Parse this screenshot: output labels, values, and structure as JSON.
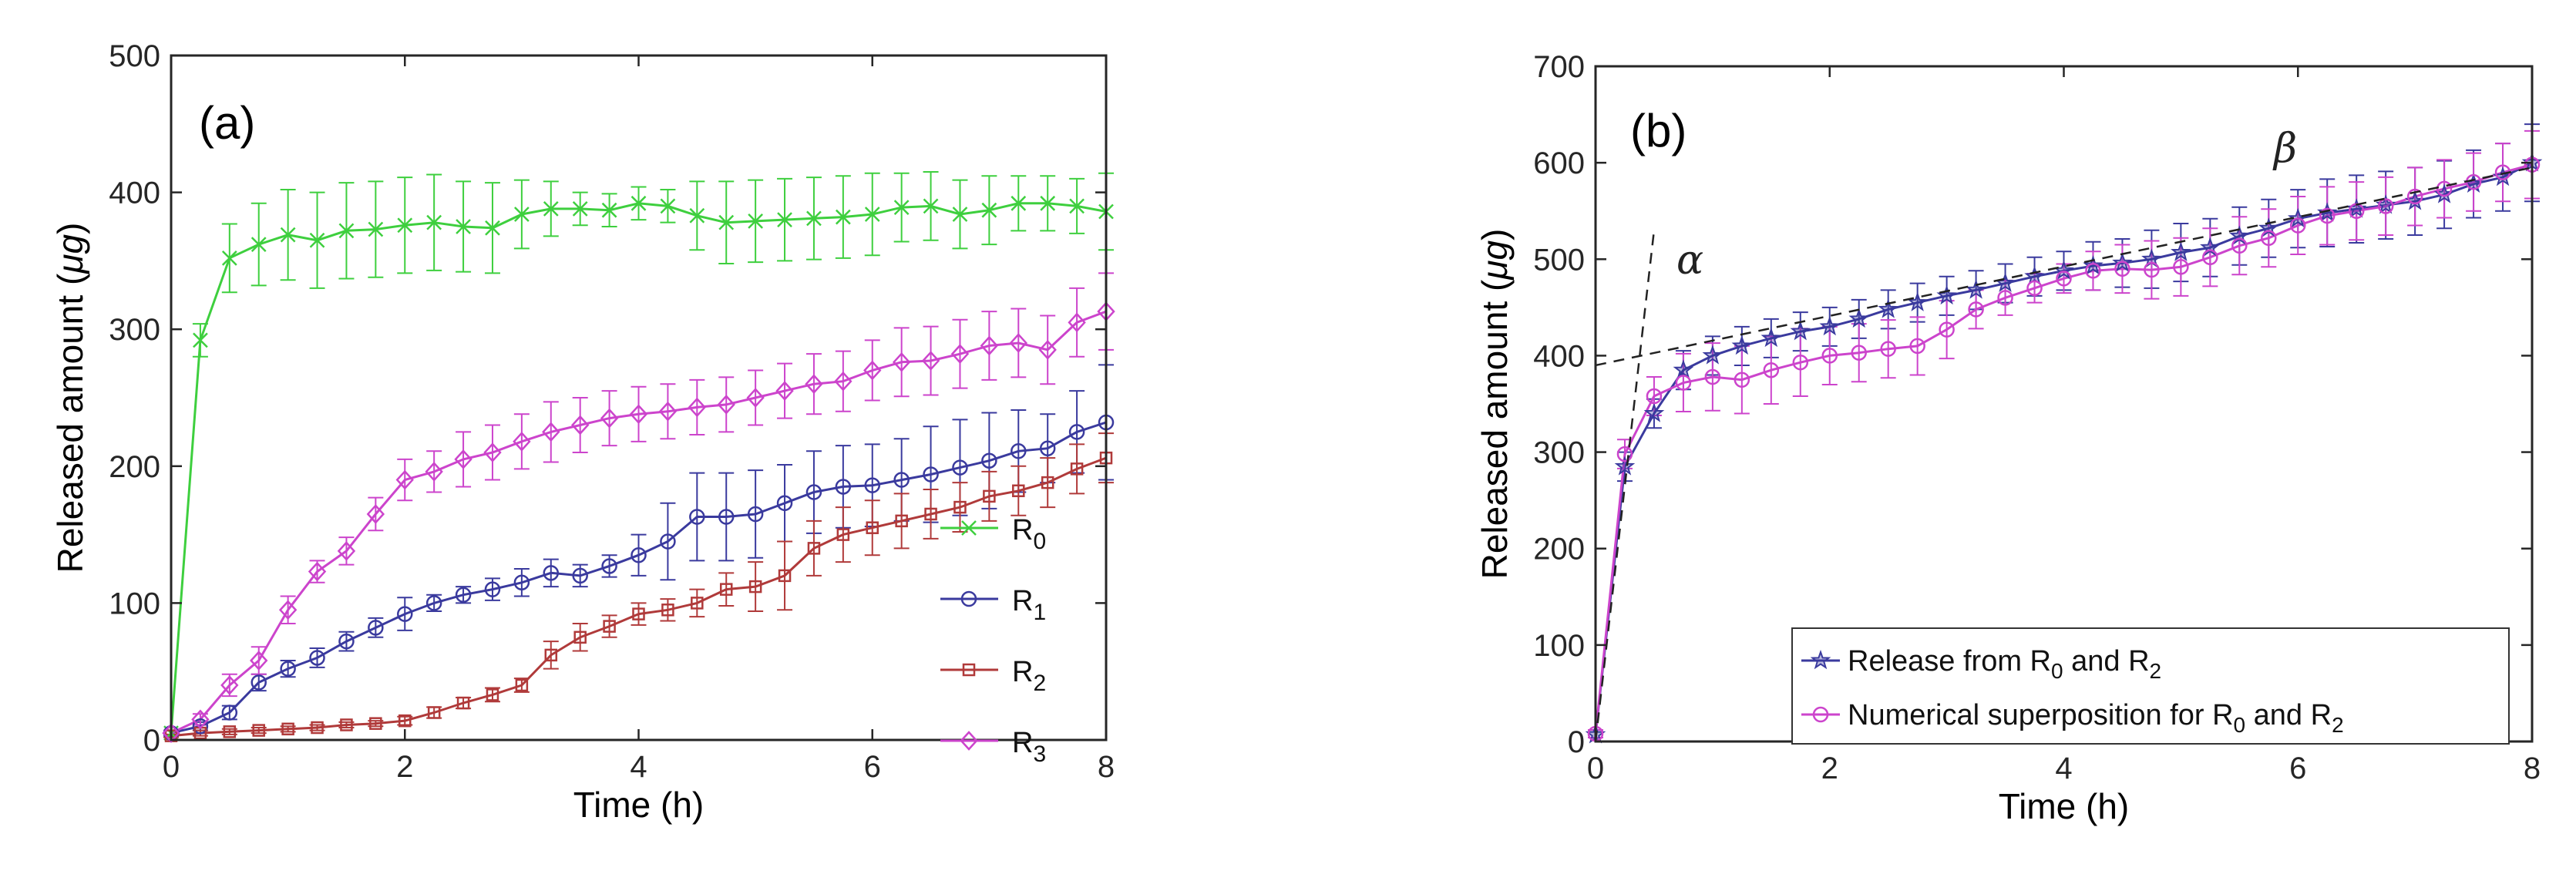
{
  "chart_data": [
    {
      "type": "line",
      "panel_label": "(a)",
      "xlabel": "Time (h)",
      "ylabel_prefix": "Released amount (",
      "ylabel_unit": "μg",
      "ylabel_suffix": ")",
      "xlim": [
        0,
        8
      ],
      "ylim": [
        0,
        500
      ],
      "xticks": [
        0,
        2,
        4,
        6,
        8
      ],
      "yticks": [
        0,
        100,
        200,
        300,
        400,
        500
      ],
      "x": [
        0,
        0.25,
        0.5,
        0.75,
        1,
        1.25,
        1.5,
        1.75,
        2,
        2.25,
        2.5,
        2.75,
        3,
        3.25,
        3.5,
        3.75,
        4,
        4.25,
        4.5,
        4.75,
        5,
        5.25,
        5.5,
        5.75,
        6,
        6.25,
        6.5,
        6.75,
        7,
        7.25,
        7.5,
        7.75,
        8
      ],
      "legend_position": "right",
      "series": [
        {
          "name": "R",
          "subscript": "0",
          "color": "#3ecf3e",
          "marker": "x",
          "values": [
            5,
            292,
            352,
            362,
            369,
            365,
            372,
            373,
            376,
            378,
            375,
            374,
            384,
            388,
            388,
            387,
            392,
            390,
            383,
            378,
            379,
            380,
            381,
            382,
            384,
            389,
            390,
            384,
            387,
            392,
            392,
            390,
            386
          ],
          "errors": [
            2,
            12,
            25,
            30,
            33,
            35,
            35,
            35,
            35,
            35,
            33,
            33,
            25,
            20,
            12,
            12,
            12,
            12,
            25,
            30,
            30,
            30,
            30,
            30,
            30,
            25,
            25,
            25,
            25,
            20,
            20,
            20,
            28
          ]
        },
        {
          "name": "R",
          "subscript": "1",
          "color": "#3a3a9e",
          "marker": "o",
          "values": [
            5,
            10,
            20,
            42,
            52,
            60,
            72,
            82,
            92,
            100,
            106,
            110,
            115,
            122,
            120,
            127,
            135,
            145,
            163,
            163,
            165,
            173,
            181,
            185,
            186,
            190,
            194,
            199,
            204,
            211,
            213,
            225,
            232
          ],
          "errors": [
            2,
            3,
            5,
            6,
            6,
            7,
            7,
            7,
            12,
            6,
            6,
            8,
            10,
            10,
            8,
            8,
            15,
            28,
            32,
            32,
            32,
            28,
            30,
            30,
            30,
            30,
            35,
            35,
            35,
            30,
            25,
            30,
            42
          ]
        },
        {
          "name": "R",
          "subscript": "2",
          "color": "#b03a3a",
          "marker": "s",
          "values": [
            3,
            5,
            6,
            7,
            8,
            9,
            11,
            12,
            14,
            20,
            27,
            33,
            40,
            62,
            75,
            83,
            92,
            95,
            100,
            110,
            112,
            120,
            140,
            150,
            155,
            160,
            165,
            170,
            178,
            182,
            188,
            198,
            206
          ],
          "errors": [
            1,
            2,
            2,
            2,
            2,
            2,
            2,
            2,
            3,
            4,
            4,
            5,
            5,
            10,
            10,
            8,
            8,
            8,
            10,
            12,
            18,
            25,
            20,
            20,
            20,
            20,
            18,
            18,
            18,
            18,
            18,
            18,
            18
          ]
        },
        {
          "name": "R",
          "subscript": "3",
          "color": "#cc44cc",
          "marker": "d",
          "values": [
            5,
            15,
            40,
            58,
            95,
            123,
            138,
            165,
            190,
            196,
            205,
            210,
            218,
            225,
            230,
            235,
            238,
            240,
            243,
            245,
            250,
            255,
            260,
            262,
            270,
            276,
            277,
            282,
            288,
            290,
            285,
            305,
            313
          ],
          "errors": [
            2,
            4,
            8,
            10,
            10,
            8,
            10,
            12,
            15,
            15,
            20,
            20,
            20,
            22,
            20,
            20,
            20,
            20,
            20,
            20,
            20,
            20,
            22,
            22,
            22,
            25,
            25,
            25,
            25,
            25,
            25,
            25,
            28
          ]
        }
      ]
    },
    {
      "type": "line",
      "panel_label": "(b)",
      "xlabel": "Time (h)",
      "ylabel_prefix": "Released amount (",
      "ylabel_unit": "μg",
      "ylabel_suffix": ")",
      "xlim": [
        0,
        8
      ],
      "ylim": [
        0,
        700
      ],
      "xticks": [
        0,
        2,
        4,
        6,
        8
      ],
      "yticks": [
        0,
        100,
        200,
        300,
        400,
        500,
        600,
        700
      ],
      "x": [
        0,
        0.25,
        0.5,
        0.75,
        1,
        1.25,
        1.5,
        1.75,
        2,
        2.25,
        2.5,
        2.75,
        3,
        3.25,
        3.5,
        3.75,
        4,
        4.25,
        4.5,
        4.75,
        5,
        5.25,
        5.5,
        5.75,
        6,
        6.25,
        6.5,
        6.75,
        7,
        7.25,
        7.5,
        7.75,
        8
      ],
      "legend_position": "bottom-right",
      "annotations": {
        "alpha": "α",
        "beta": "β"
      },
      "tangent_lines": [
        {
          "name": "alpha-tangent",
          "from": [
            0,
            0
          ],
          "to": [
            0.5,
            530
          ]
        },
        {
          "name": "beta-tangent",
          "from": [
            0,
            390
          ],
          "to": [
            8,
            595
          ]
        }
      ],
      "series": [
        {
          "name_prefix": "Release from R",
          "sub1": "0",
          "name_mid": " and R",
          "sub2": "2",
          "color": "#3a3a9e",
          "marker": "star",
          "values": [
            7,
            285,
            340,
            385,
            400,
            410,
            418,
            425,
            430,
            438,
            448,
            455,
            462,
            468,
            475,
            482,
            488,
            493,
            496,
            500,
            507,
            512,
            524,
            532,
            542,
            548,
            552,
            556,
            560,
            567,
            578,
            585,
            600
          ],
          "errors": [
            3,
            15,
            15,
            20,
            20,
            20,
            20,
            20,
            20,
            20,
            20,
            20,
            20,
            20,
            20,
            20,
            20,
            25,
            25,
            30,
            30,
            30,
            30,
            30,
            30,
            35,
            35,
            35,
            35,
            35,
            35,
            35,
            40
          ]
        },
        {
          "name_prefix": "Numerical superposition for R",
          "sub1": "0",
          "name_mid": " and R",
          "sub2": "2",
          "color": "#cc44cc",
          "marker": "o",
          "values": [
            8,
            298,
            358,
            372,
            378,
            375,
            385,
            393,
            400,
            403,
            407,
            410,
            427,
            448,
            460,
            470,
            480,
            488,
            490,
            489,
            492,
            502,
            514,
            522,
            535,
            545,
            550,
            555,
            565,
            573,
            580,
            590,
            598
          ],
          "errors": [
            4,
            15,
            20,
            30,
            35,
            35,
            35,
            35,
            30,
            30,
            30,
            30,
            30,
            20,
            18,
            15,
            15,
            20,
            25,
            30,
            30,
            30,
            30,
            30,
            30,
            30,
            30,
            30,
            30,
            30,
            30,
            30,
            35
          ]
        }
      ]
    }
  ]
}
